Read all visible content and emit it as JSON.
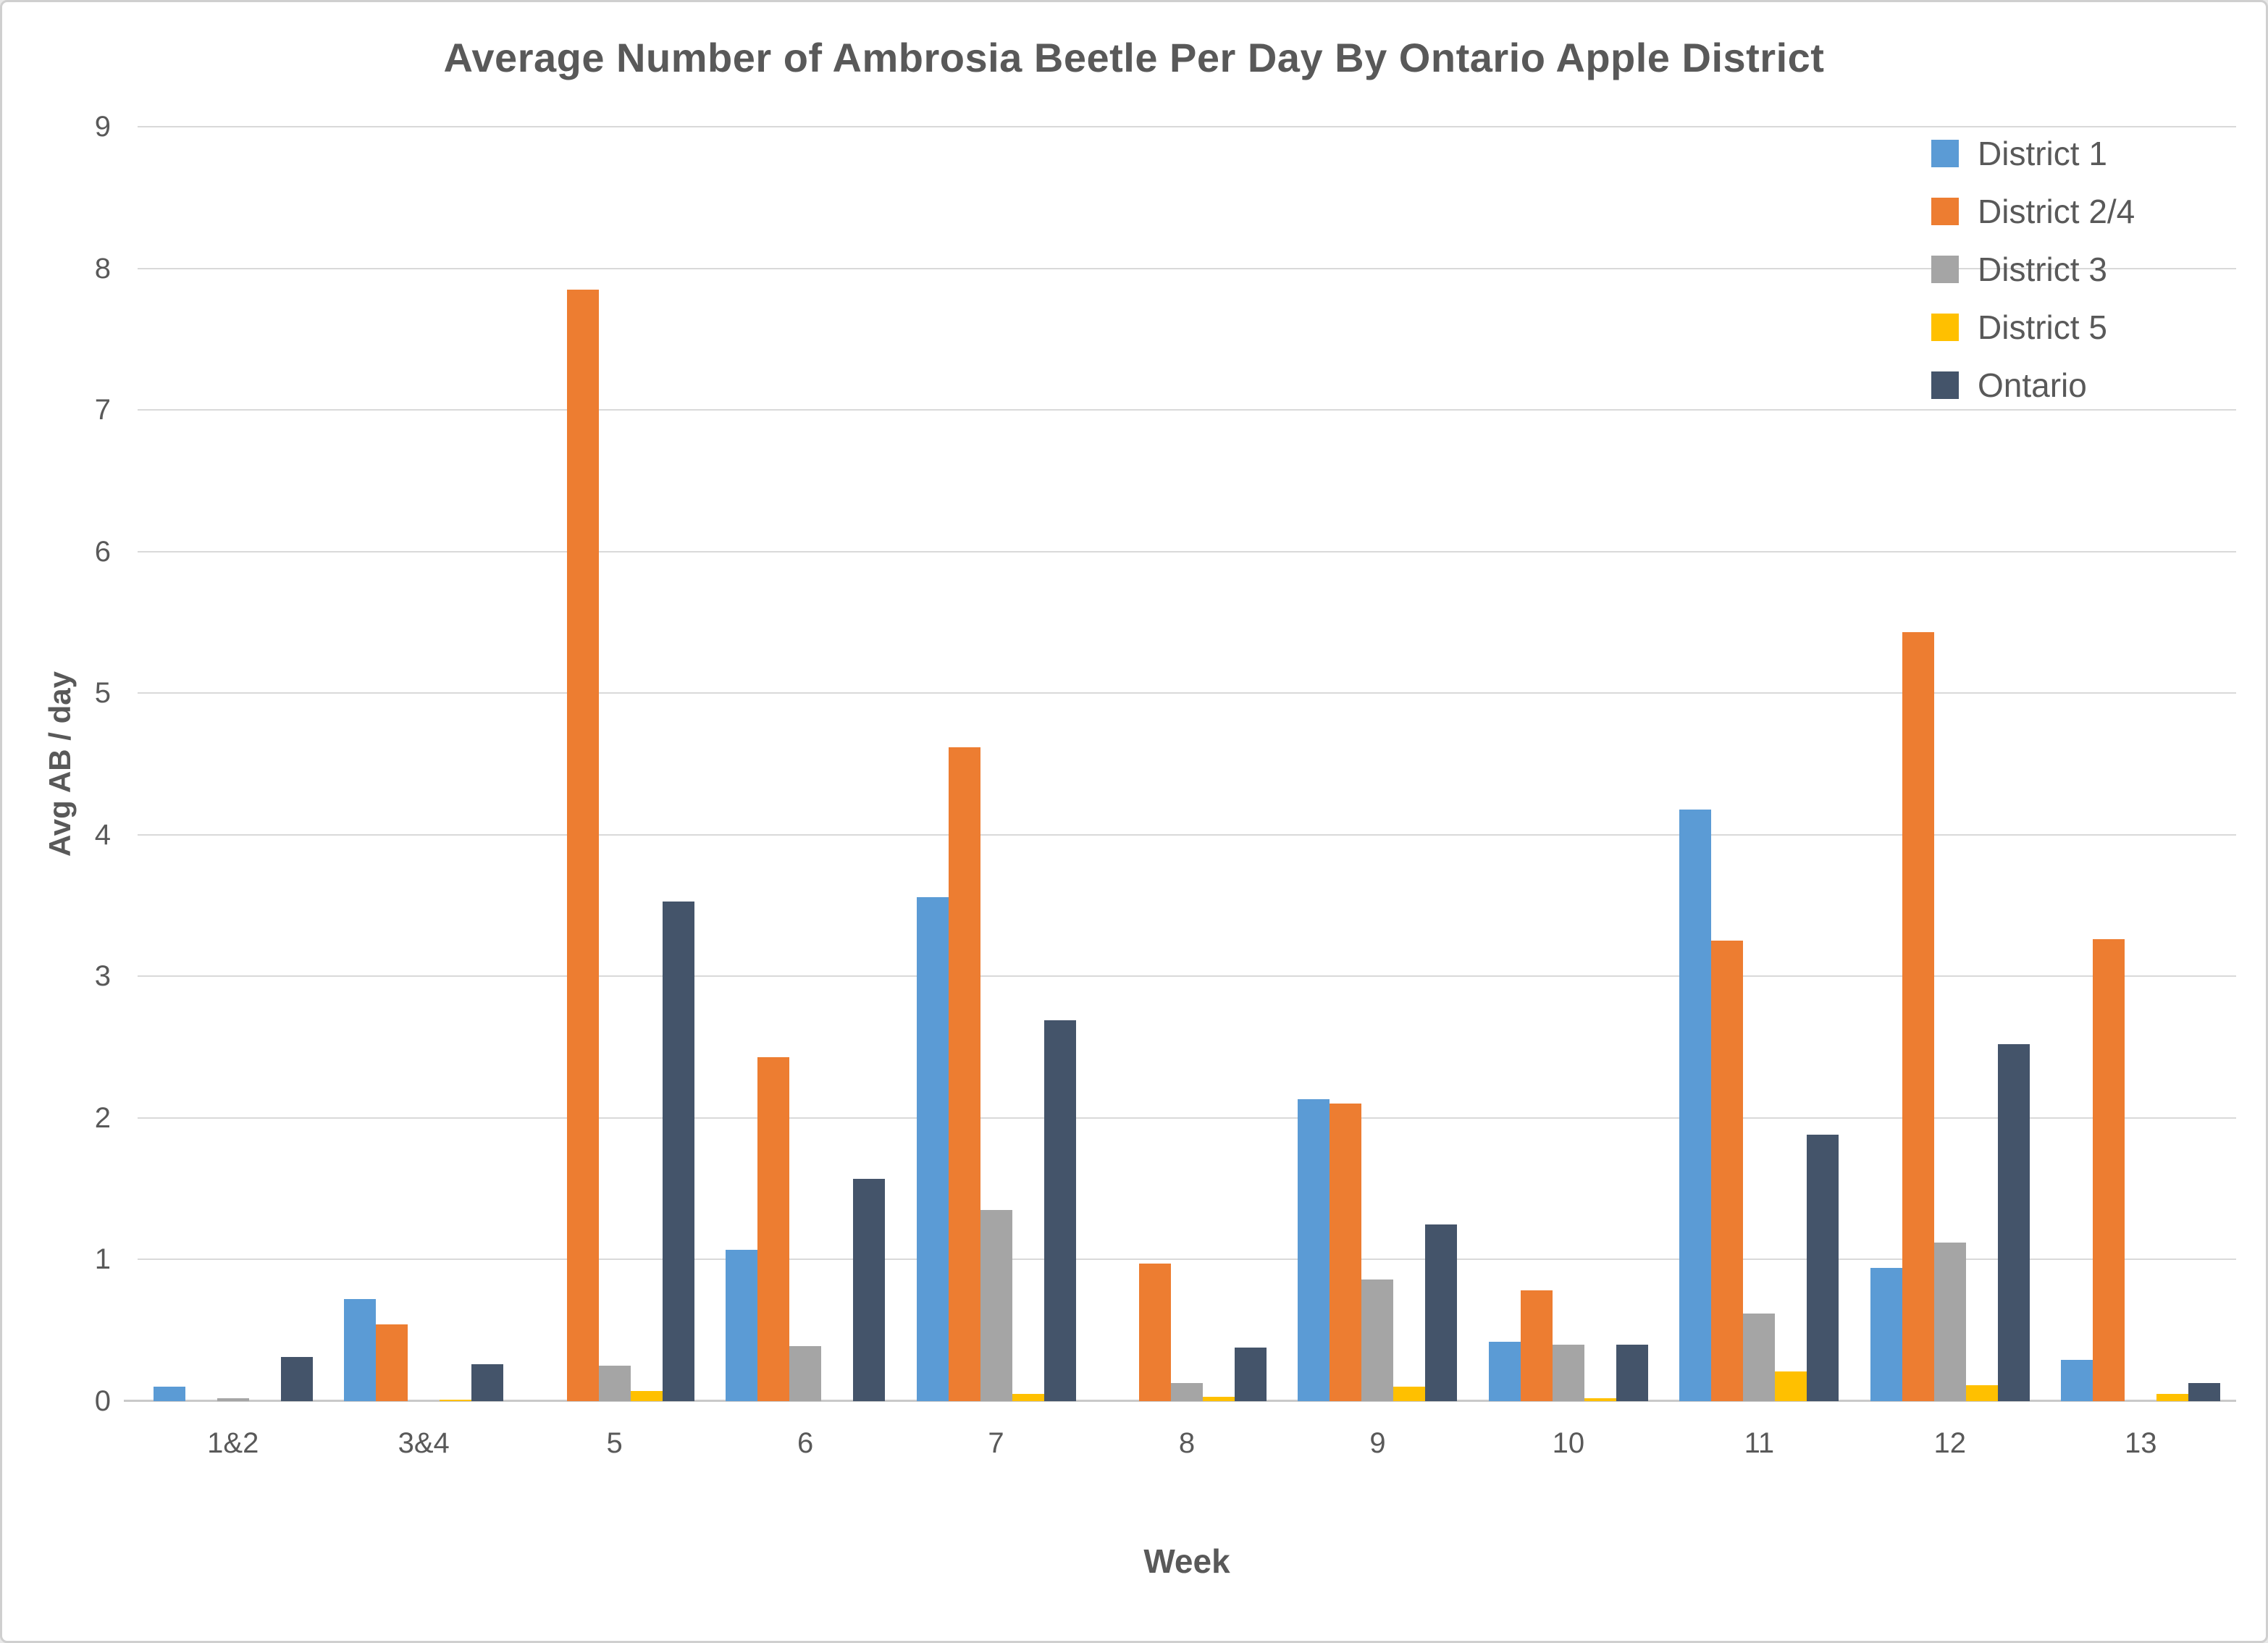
{
  "page": {
    "background": "#ffffff",
    "border_color": "#cfcfcf"
  },
  "chart_data": {
    "type": "bar",
    "title": "Average Number of Ambrosia Beetle Per Day By Ontario Apple District",
    "xlabel": "Week",
    "ylabel": "Avg AB / day",
    "ylim": [
      0,
      9
    ],
    "y_ticks": [
      0,
      1,
      2,
      3,
      4,
      5,
      6,
      7,
      8,
      9
    ],
    "grid": true,
    "legend_position": "top-right",
    "categories": [
      "1&2",
      "3&4",
      "5",
      "6",
      "7",
      "8",
      "9",
      "10",
      "11",
      "12",
      "13"
    ],
    "series": [
      {
        "name": "District 1",
        "color": "#5B9BD5",
        "values": [
          0.1,
          0.72,
          0,
          1.07,
          3.56,
          0,
          2.13,
          0.42,
          4.18,
          0.94,
          0.29
        ]
      },
      {
        "name": "District 2/4",
        "color": "#ED7D31",
        "values": [
          0,
          0.54,
          7.85,
          2.43,
          4.62,
          0.97,
          2.1,
          0.78,
          3.25,
          5.43,
          3.26
        ]
      },
      {
        "name": "District 3",
        "color": "#A5A5A5",
        "values": [
          0.02,
          0,
          0.25,
          0.39,
          1.35,
          0.13,
          0.86,
          0.4,
          0.62,
          1.12,
          0
        ]
      },
      {
        "name": "District 5",
        "color": "#FFC000",
        "values": [
          0,
          0.01,
          0.07,
          0,
          0.05,
          0.03,
          0.1,
          0.02,
          0.21,
          0.11,
          0.05
        ]
      },
      {
        "name": "Ontario",
        "color": "#44546A",
        "values": [
          0.31,
          0.26,
          3.53,
          1.57,
          2.69,
          0.38,
          1.25,
          0.4,
          1.88,
          2.52,
          0.13
        ]
      }
    ],
    "colors": {
      "text": "#595959",
      "gridline": "#d9d9d9",
      "axis_line": "#c9c9c9"
    }
  }
}
